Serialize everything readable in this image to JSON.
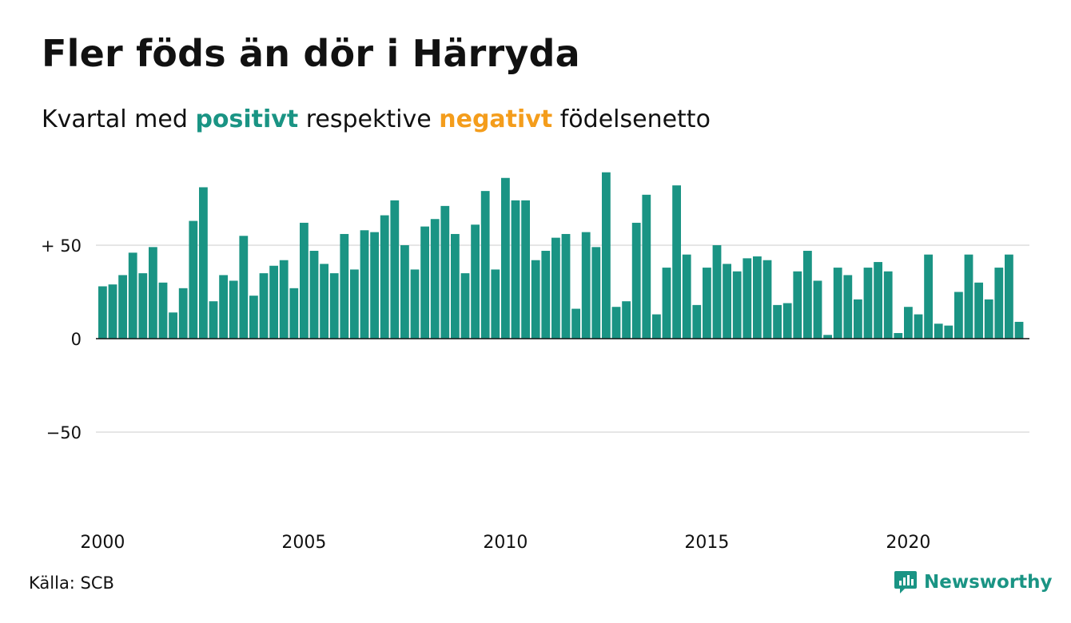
{
  "title": "Fler föds än dör i Härryda",
  "subtitle": {
    "prefix": "Kvartal med",
    "positive": "positivt",
    "middle": "respektive",
    "negative": "negativt",
    "suffix": "födelsenetto"
  },
  "source": "Källa: SCB",
  "brand": {
    "name": "Newsworthy",
    "icon": "newsworthy-logo-icon"
  },
  "colors": {
    "positive": "#1a9484",
    "negative": "#f49d1c",
    "grid": "#dddddd",
    "axis": "#111111"
  },
  "chart_data": {
    "type": "bar",
    "x_start": "2000-Q1",
    "y_ticks": [
      {
        "value": 50,
        "label": "+ 50"
      },
      {
        "value": 0,
        "label": "0"
      },
      {
        "value": -50,
        "label": "−50"
      }
    ],
    "x_ticks": [
      "2000",
      "2005",
      "2010",
      "2015",
      "2020"
    ],
    "ylim": [
      -100,
      90
    ],
    "grid": true,
    "values": [
      28,
      29,
      34,
      46,
      35,
      49,
      30,
      14,
      27,
      63,
      81,
      20,
      34,
      31,
      55,
      23,
      35,
      39,
      42,
      27,
      62,
      47,
      40,
      35,
      56,
      37,
      58,
      57,
      66,
      74,
      50,
      37,
      60,
      64,
      71,
      56,
      35,
      61,
      79,
      37,
      86,
      74,
      74,
      42,
      47,
      54,
      56,
      16,
      57,
      49,
      89,
      17,
      20,
      62,
      77,
      13,
      38,
      82,
      45,
      18,
      38,
      50,
      40,
      36,
      43,
      44,
      42,
      18,
      19,
      36,
      47,
      31,
      2,
      38,
      34,
      21,
      38,
      41,
      36,
      3,
      17,
      13,
      45,
      8,
      7,
      25,
      45,
      30,
      21,
      38,
      45,
      9
    ]
  }
}
